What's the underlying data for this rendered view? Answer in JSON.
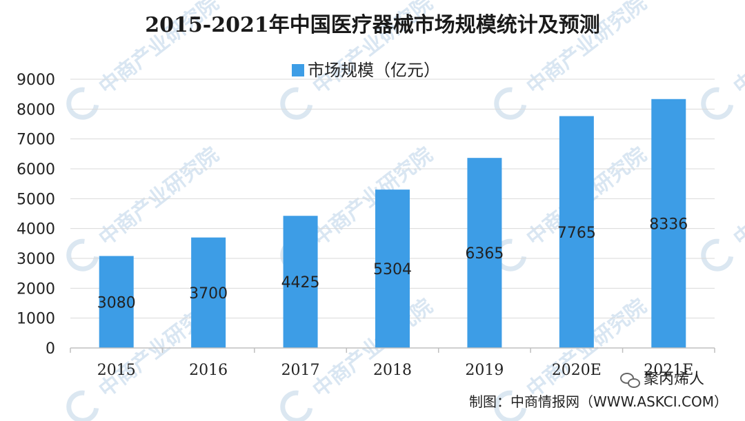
{
  "chart_data": {
    "type": "bar",
    "title": "2015-2021年中国医疗器械市场规模统计及预测",
    "categories": [
      "2015",
      "2016",
      "2017",
      "2018",
      "2019",
      "2020E",
      "2021E"
    ],
    "series": [
      {
        "name": "市场规模（亿元）",
        "values": [
          3080,
          3700,
          4425,
          5304,
          6365,
          7765,
          8336
        ]
      }
    ],
    "data_labels": [
      "3080",
      "3700",
      "4425",
      "5304",
      "6365",
      "7765",
      "8336"
    ],
    "ylim": [
      0,
      9000
    ],
    "yticks": [
      0,
      1000,
      2000,
      3000,
      4000,
      5000,
      6000,
      7000,
      8000,
      9000
    ],
    "grid": true,
    "legend_position": "top",
    "bar_color": "#3D9DE6"
  },
  "watermark": "中商产业研究院",
  "source": "制图：中商情报网（WWW.ASKCI.COM）",
  "signature": "聚丙烯人"
}
